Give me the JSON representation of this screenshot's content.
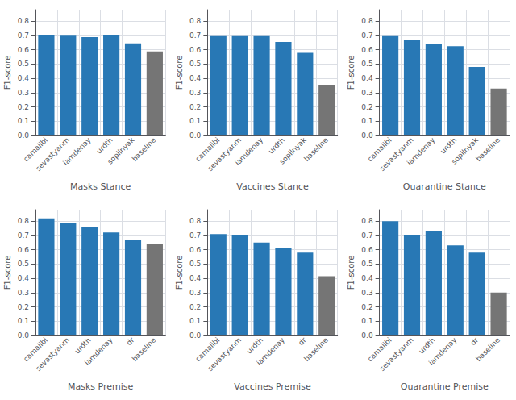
{
  "chart_data": [
    {
      "type": "bar",
      "xlabel": "Masks Stance",
      "ylabel": "F1-score",
      "categories": [
        "camalibi",
        "sevastyanm",
        "iamdenay",
        "urdth",
        "sopilnyak",
        "baseline"
      ],
      "values": [
        0.705,
        0.698,
        0.688,
        0.705,
        0.645,
        0.588
      ],
      "colors": [
        "#2878b5",
        "#2878b5",
        "#2878b5",
        "#2878b5",
        "#2878b5",
        "#757575"
      ],
      "ylim": [
        0.0,
        0.88
      ],
      "yticks": [
        {
          "value": 0.0,
          "label": "0.0"
        },
        0.1,
        0.2,
        0.3,
        0.4,
        0.5,
        0.6,
        0.7,
        0.8
      ],
      "grid": true
    },
    {
      "type": "bar",
      "xlabel": "Vaccines Stance",
      "ylabel": "F1-score",
      "categories": [
        "camalibi",
        "sevastyanm",
        "iamdenay",
        "urdth",
        "sopilnyak",
        "baseline"
      ],
      "values": [
        0.695,
        0.695,
        0.695,
        0.655,
        0.578,
        0.355
      ],
      "colors": [
        "#2878b5",
        "#2878b5",
        "#2878b5",
        "#2878b5",
        "#2878b5",
        "#757575"
      ],
      "ylim": [
        0.0,
        0.88
      ],
      "yticks": [
        {
          "value": 0.0,
          "label": "0.0"
        },
        0.1,
        0.2,
        0.3,
        0.4,
        0.5,
        0.6,
        0.7,
        0.8
      ],
      "grid": true
    },
    {
      "type": "bar",
      "xlabel": "Quarantine Stance",
      "ylabel": "F1-score",
      "categories": [
        "camalibi",
        "sevastyanm",
        "iamdenay",
        "urdth",
        "sopilnyak",
        "baseline"
      ],
      "values": [
        0.695,
        0.665,
        0.643,
        0.625,
        0.48,
        0.328
      ],
      "colors": [
        "#2878b5",
        "#2878b5",
        "#2878b5",
        "#2878b5",
        "#2878b5",
        "#757575"
      ],
      "ylim": [
        0.0,
        0.88
      ],
      "yticks": [
        {
          "value": 0.0,
          "label": "0.0"
        },
        0.1,
        0.2,
        0.3,
        0.4,
        0.5,
        0.6,
        0.7,
        0.8
      ],
      "grid": true
    },
    {
      "type": "bar",
      "xlabel": "Masks Premise",
      "ylabel": "F1-score",
      "categories": [
        "camalibi",
        "sevastyanm",
        "urdth",
        "iamdenay",
        "dr",
        "baseline"
      ],
      "values": [
        0.82,
        0.79,
        0.76,
        0.72,
        0.67,
        0.64
      ],
      "colors": [
        "#2878b5",
        "#2878b5",
        "#2878b5",
        "#2878b5",
        "#2878b5",
        "#757575"
      ],
      "ylim": [
        0.0,
        0.88
      ],
      "yticks": [
        {
          "value": 0.0,
          "label": "0.0"
        },
        0.1,
        0.2,
        0.3,
        0.4,
        0.5,
        0.6,
        0.7,
        0.8
      ],
      "grid": true
    },
    {
      "type": "bar",
      "xlabel": "Vaccines Premise",
      "ylabel": "F1-score",
      "categories": [
        "camalibi",
        "sevastyanm",
        "urdth",
        "iamdenay",
        "dr",
        "baseline"
      ],
      "values": [
        0.71,
        0.7,
        0.65,
        0.61,
        0.58,
        0.415
      ],
      "colors": [
        "#2878b5",
        "#2878b5",
        "#2878b5",
        "#2878b5",
        "#2878b5",
        "#757575"
      ],
      "ylim": [
        0.0,
        0.88
      ],
      "yticks": [
        {
          "value": 0.0,
          "label": "0.0"
        },
        0.1,
        0.2,
        0.3,
        0.4,
        0.5,
        0.6,
        0.7,
        0.8
      ],
      "grid": true
    },
    {
      "type": "bar",
      "xlabel": "Quarantine Premise",
      "ylabel": "F1-score",
      "categories": [
        "camalibi",
        "sevastyanm",
        "urdth",
        "iamdenay",
        "dr",
        "baseline"
      ],
      "values": [
        0.8,
        0.7,
        0.73,
        0.63,
        0.58,
        0.3
      ],
      "colors": [
        "#2878b5",
        "#2878b5",
        "#2878b5",
        "#2878b5",
        "#2878b5",
        "#757575"
      ],
      "ylim": [
        0.0,
        0.88
      ],
      "yticks": [
        {
          "value": 0.0,
          "label": "0.0"
        },
        0.1,
        0.2,
        0.3,
        0.4,
        0.5,
        0.6,
        0.7,
        0.8
      ],
      "grid": true
    }
  ]
}
